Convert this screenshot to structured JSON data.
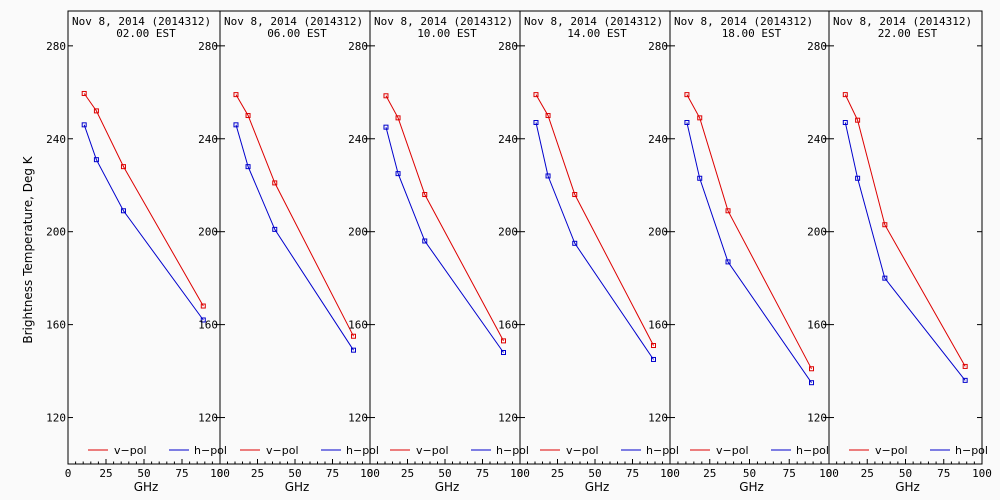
{
  "figure": {
    "ylabel": "Brightness Temperature, Deg K",
    "xlabel": "GHz",
    "legend": [
      "v−pol",
      "h−pol"
    ],
    "colors": {
      "v": "#dd0000",
      "h": "#0000cc",
      "frame": "#000000",
      "bg": "#fafafa"
    }
  },
  "chart_data": [
    {
      "type": "line",
      "title_line1": "Nov  8, 2014 (2014312)",
      "title_line2": "02.00 EST",
      "x": [
        10.65,
        18.7,
        36.5,
        89.0
      ],
      "xlim": [
        0,
        100
      ],
      "ylim": [
        100,
        295
      ],
      "ylim_fixed": [
        100,
        295
      ],
      "series": [
        {
          "name": "v−pol",
          "color": "#dd0000",
          "values": [
            259.5,
            252,
            228,
            168
          ]
        },
        {
          "name": "h−pol",
          "color": "#0000cc",
          "values": [
            246,
            231,
            209,
            162
          ]
        }
      ]
    },
    {
      "type": "line",
      "title_line1": "Nov  8, 2014 (2014312)",
      "title_line2": "06.00 EST",
      "x": [
        10.65,
        18.7,
        36.5,
        89.0
      ],
      "xlim": [
        0,
        100
      ],
      "ylim": [
        100,
        295
      ],
      "series": [
        {
          "name": "v−pol",
          "color": "#dd0000",
          "values": [
            259,
            250,
            221,
            155
          ]
        },
        {
          "name": "h−pol",
          "color": "#0000cc",
          "values": [
            246,
            228,
            201,
            149
          ]
        }
      ]
    },
    {
      "type": "line",
      "title_line1": "Nov  8, 2014 (2014312)",
      "title_line2": "10.00 EST",
      "x": [
        10.65,
        18.7,
        36.5,
        89.0
      ],
      "xlim": [
        0,
        100
      ],
      "ylim": [
        100,
        295
      ],
      "series": [
        {
          "name": "v−pol",
          "color": "#dd0000",
          "values": [
            258.5,
            249,
            216,
            153
          ]
        },
        {
          "name": "h−pol",
          "color": "#0000cc",
          "values": [
            245,
            225,
            196,
            148
          ]
        }
      ]
    },
    {
      "type": "line",
      "title_line1": "Nov  8, 2014 (2014312)",
      "title_line2": "14.00 EST",
      "x": [
        10.65,
        18.7,
        36.5,
        89.0
      ],
      "xlim": [
        0,
        100
      ],
      "ylim": [
        100,
        295
      ],
      "series": [
        {
          "name": "v−pol",
          "color": "#dd0000",
          "values": [
            259,
            250,
            216,
            151
          ]
        },
        {
          "name": "h−pol",
          "color": "#0000cc",
          "values": [
            247,
            224,
            195,
            145
          ]
        }
      ]
    },
    {
      "type": "line",
      "title_line1": "Nov  8, 2014 (2014312)",
      "title_line2": "18.00 EST",
      "x": [
        10.65,
        18.7,
        36.5,
        89.0
      ],
      "xlim": [
        0,
        100
      ],
      "ylim": [
        100,
        295
      ],
      "series": [
        {
          "name": "v−pol",
          "color": "#dd0000",
          "values": [
            259,
            249,
            209,
            141
          ]
        },
        {
          "name": "h−pol",
          "color": "#0000cc",
          "values": [
            247,
            223,
            187,
            135
          ]
        }
      ]
    },
    {
      "type": "line",
      "title_line1": "Nov  8, 2014 (2014312)",
      "title_line2": "22.00 EST",
      "x": [
        10.65,
        18.7,
        36.5,
        89.0
      ],
      "xlim": [
        0,
        100
      ],
      "ylim": [
        100,
        295
      ],
      "series": [
        {
          "name": "v−pol",
          "color": "#dd0000",
          "values": [
            259,
            248,
            203,
            142
          ]
        },
        {
          "name": "h−pol",
          "color": "#0000cc",
          "values": [
            247,
            223,
            180,
            136
          ]
        }
      ]
    }
  ],
  "ticks": {
    "y": [
      120,
      160,
      200,
      240,
      280
    ],
    "x": [
      0,
      25,
      50,
      75,
      100
    ],
    "x_labels": [
      "0",
      "25",
      "50",
      "75",
      "100"
    ]
  }
}
